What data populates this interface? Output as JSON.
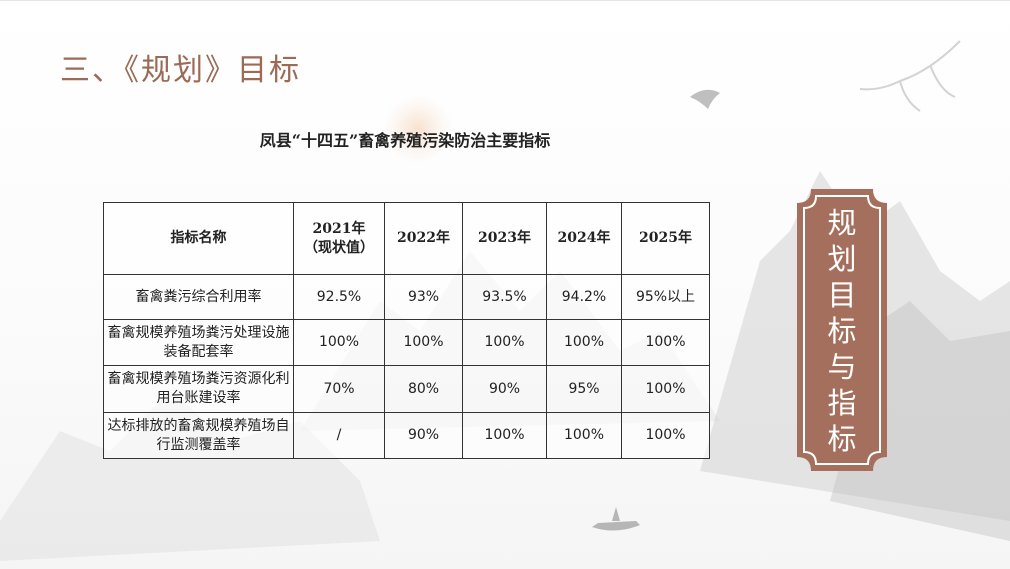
{
  "slide": {
    "title": "三、《规划》目标",
    "caption": "凤县“十四五”畜禽养殖污染防治主要指标"
  },
  "table": {
    "headers": [
      "指标名称",
      "2021年\n（现状值）",
      "2022年",
      "2023年",
      "2024年",
      "2025年"
    ],
    "rows": [
      [
        "畜禽粪污综合利用率",
        "92.5%",
        "93%",
        "93.5%",
        "94.2%",
        "95%以上"
      ],
      [
        "畜禽规模养殖场粪污处理设施装备配套率",
        "100%",
        "100%",
        "100%",
        "100%",
        "100%"
      ],
      [
        "畜禽规模养殖场粪污资源化利用台账建设率",
        "70%",
        "80%",
        "90%",
        "95%",
        "100%"
      ],
      [
        "达标排放的畜禽规模养殖场自行监测覆盖率",
        "/",
        "90%",
        "100%",
        "100%",
        "100%"
      ]
    ]
  },
  "banner": {
    "chars": [
      "规",
      "划",
      "目",
      "标",
      "与",
      "指",
      "标"
    ]
  },
  "colors": {
    "title": "#9b6b55",
    "banner_fill": "#a46f5c",
    "banner_border": "#ffffff"
  }
}
